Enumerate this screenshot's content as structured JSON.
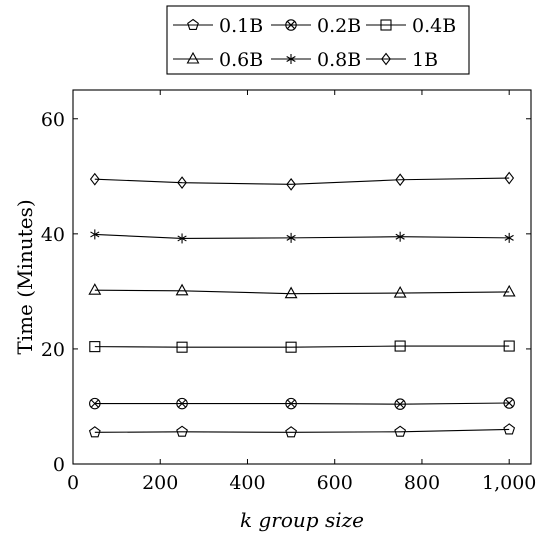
{
  "chart_data": {
    "type": "line",
    "xlabel": "k group size",
    "ylabel": "Time (Minutes)",
    "xlim": [
      0,
      1050
    ],
    "ylim": [
      0,
      65
    ],
    "x_ticks": [
      0,
      200,
      400,
      600,
      800,
      1000
    ],
    "x_tick_labels": [
      "0",
      "200",
      "400",
      "600",
      "800",
      "1,000"
    ],
    "y_ticks": [
      0,
      20,
      40,
      60
    ],
    "y_tick_labels": [
      "0",
      "20",
      "40",
      "60"
    ],
    "grid": false,
    "legend_position": "top-center",
    "x": [
      50,
      250,
      500,
      750,
      1000
    ],
    "series": [
      {
        "name": "0.1B",
        "marker": "pentagon",
        "values": [
          5.5,
          5.6,
          5.5,
          5.6,
          6.0
        ]
      },
      {
        "name": "0.2B",
        "marker": "circle-x",
        "values": [
          10.5,
          10.5,
          10.5,
          10.4,
          10.6
        ]
      },
      {
        "name": "0.4B",
        "marker": "square",
        "values": [
          20.4,
          20.3,
          20.3,
          20.5,
          20.5
        ]
      },
      {
        "name": "0.6B",
        "marker": "triangle",
        "values": [
          30.2,
          30.1,
          29.6,
          29.7,
          29.9
        ]
      },
      {
        "name": "0.8B",
        "marker": "star",
        "values": [
          39.9,
          39.2,
          39.3,
          39.5,
          39.3
        ]
      },
      {
        "name": "1B",
        "marker": "diamond",
        "values": [
          49.5,
          48.9,
          48.6,
          49.4,
          49.7
        ]
      }
    ]
  }
}
